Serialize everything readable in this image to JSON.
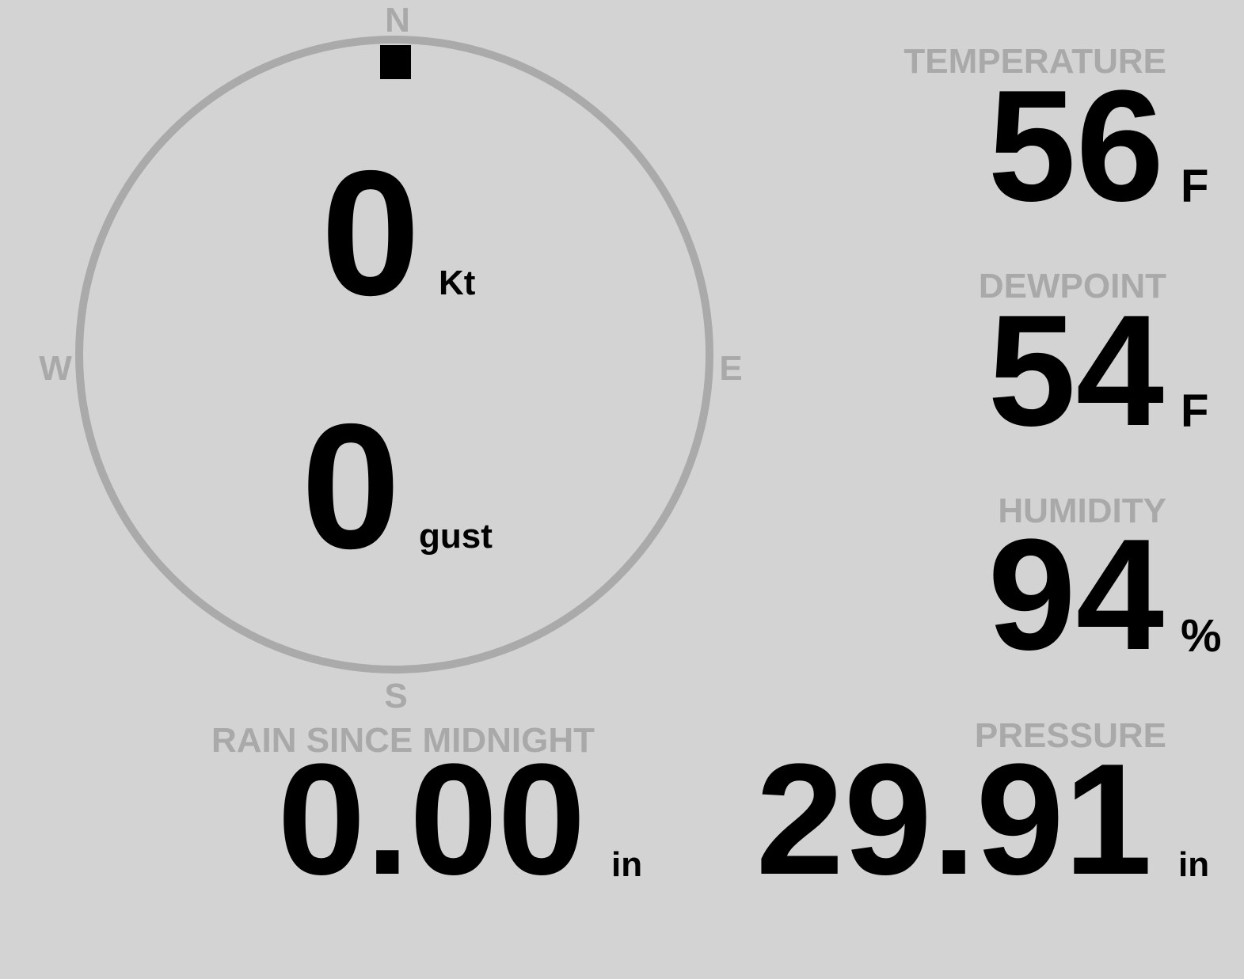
{
  "colors": {
    "background": "#d3d3d3",
    "label": "#a9a9a9",
    "value": "#000000",
    "dial": "#aaaaaa"
  },
  "compass": {
    "north": "N",
    "south": "S",
    "east": "E",
    "west": "W",
    "wind_direction_deg": 0,
    "wind_speed": "0",
    "wind_speed_unit": "Kt",
    "gust": "0",
    "gust_unit": "gust"
  },
  "temperature": {
    "label": "TEMPERATURE",
    "value": "56",
    "unit": "F"
  },
  "dewpoint": {
    "label": "DEWPOINT",
    "value": "54",
    "unit": "F"
  },
  "humidity": {
    "label": "HUMIDITY",
    "value": "94",
    "unit": "%"
  },
  "pressure": {
    "label": "PRESSURE",
    "value": "29.91",
    "unit": "in"
  },
  "rain": {
    "label": "RAIN SINCE MIDNIGHT",
    "value": "0.00",
    "unit": "in"
  }
}
